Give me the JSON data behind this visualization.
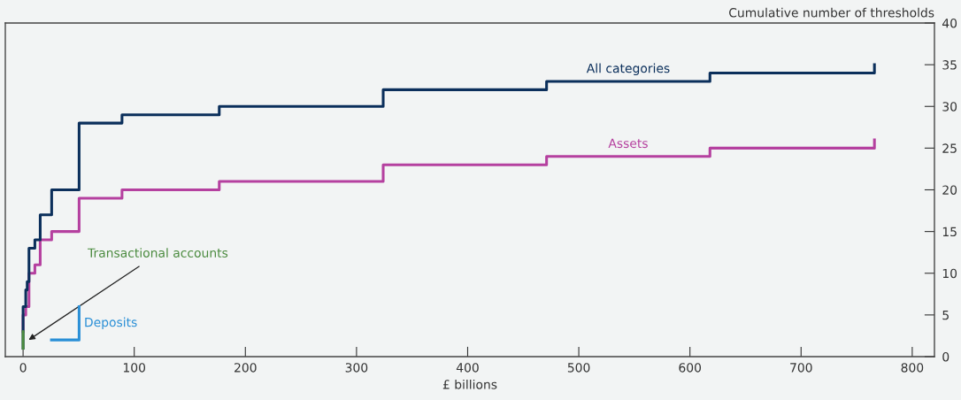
{
  "chart_data": {
    "type": "step",
    "xlabel": "£ billions",
    "ylabel": "Cumulative number of thresholds",
    "xlim": [
      -16,
      820
    ],
    "xticks": [
      0,
      100,
      200,
      300,
      400,
      500,
      600,
      700,
      800
    ],
    "ylim": [
      0,
      40
    ],
    "yticks": [
      0,
      5,
      10,
      15,
      20,
      25,
      30,
      35,
      40
    ],
    "grid": false,
    "legend": false,
    "series": [
      {
        "name": "All categories",
        "color": "#0b2f5b",
        "x": [
          0,
          0,
          2.4,
          3.7,
          5.3,
          10.6,
          15.4,
          25.7,
          50.4,
          89,
          176.5,
          324,
          471,
          618,
          766
        ],
        "values": [
          1,
          6,
          8,
          9,
          13,
          14,
          17,
          20,
          28,
          29,
          30,
          32,
          33,
          34,
          35
        ]
      },
      {
        "name": "Assets",
        "color": "#b5409f",
        "x": [
          0,
          0,
          2.4,
          5.3,
          10.6,
          15.4,
          25.7,
          50.4,
          89,
          176.5,
          324,
          471,
          618,
          766
        ],
        "values": [
          3,
          5,
          6,
          10,
          11,
          14,
          15,
          19,
          20,
          21,
          23,
          24,
          25,
          26
        ]
      },
      {
        "name": "Deposits",
        "color": "#2a8fd6",
        "x": [
          25.5,
          50.4,
          50.4
        ],
        "values": [
          2,
          2,
          6
        ]
      },
      {
        "name": "Transactional accounts",
        "color": "#4a8a3e",
        "x": [
          0,
          0
        ],
        "values": [
          1,
          3
        ]
      }
    ]
  }
}
